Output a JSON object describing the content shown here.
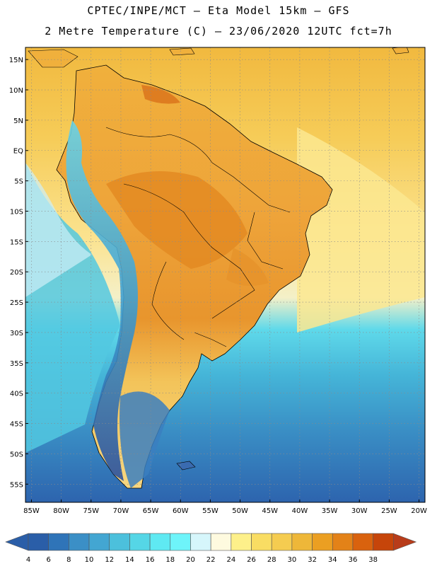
{
  "title": {
    "line1": "CPTEC/INPE/MCT –  Eta Model 15km – GFS",
    "line2": "2 Metre Temperature (C) – 23/06/2020 12UTC fct=7h"
  },
  "axes": {
    "lat_labels": [
      "15N",
      "10N",
      "5N",
      "EQ",
      "5S",
      "10S",
      "15S",
      "20S",
      "25S",
      "30S",
      "35S",
      "40S",
      "45S",
      "50S",
      "55S"
    ],
    "lat_values": [
      15,
      10,
      5,
      0,
      -5,
      -10,
      -15,
      -20,
      -25,
      -30,
      -35,
      -40,
      -45,
      -50,
      -55
    ],
    "lon_labels": [
      "85W",
      "80W",
      "75W",
      "70W",
      "65W",
      "60W",
      "55W",
      "50W",
      "45W",
      "40W",
      "35W",
      "30W",
      "25W",
      "20W"
    ],
    "lon_values": [
      -85,
      -80,
      -75,
      -70,
      -65,
      -60,
      -55,
      -50,
      -45,
      -40,
      -35,
      -30,
      -25,
      -20
    ],
    "lon_range": [
      -86,
      -19
    ],
    "lat_range": [
      -58,
      17
    ]
  },
  "legend": {
    "labels": [
      "4",
      "6",
      "8",
      "10",
      "12",
      "14",
      "16",
      "18",
      "20",
      "22",
      "24",
      "26",
      "28",
      "30",
      "32",
      "34",
      "36",
      "38"
    ],
    "colors": [
      "#2a5ea8",
      "#2f74b8",
      "#3b8fc6",
      "#43a6d2",
      "#4cc0dc",
      "#55d6e6",
      "#5fe9f2",
      "#6ef4fa",
      "#d6f6fb",
      "#fefadf",
      "#fdf08a",
      "#f9dd63",
      "#f5cc50",
      "#eeb739",
      "#eb9f22",
      "#e38218",
      "#d9620e",
      "#c6450a",
      "#b83c1a"
    ]
  },
  "map_colors": {
    "ocean_south": "#2f6fb4",
    "ocean_mid": "#44b7da",
    "ocean_north": "#f3c24a",
    "land": "#efa83a",
    "amazon": "#e48f26"
  }
}
